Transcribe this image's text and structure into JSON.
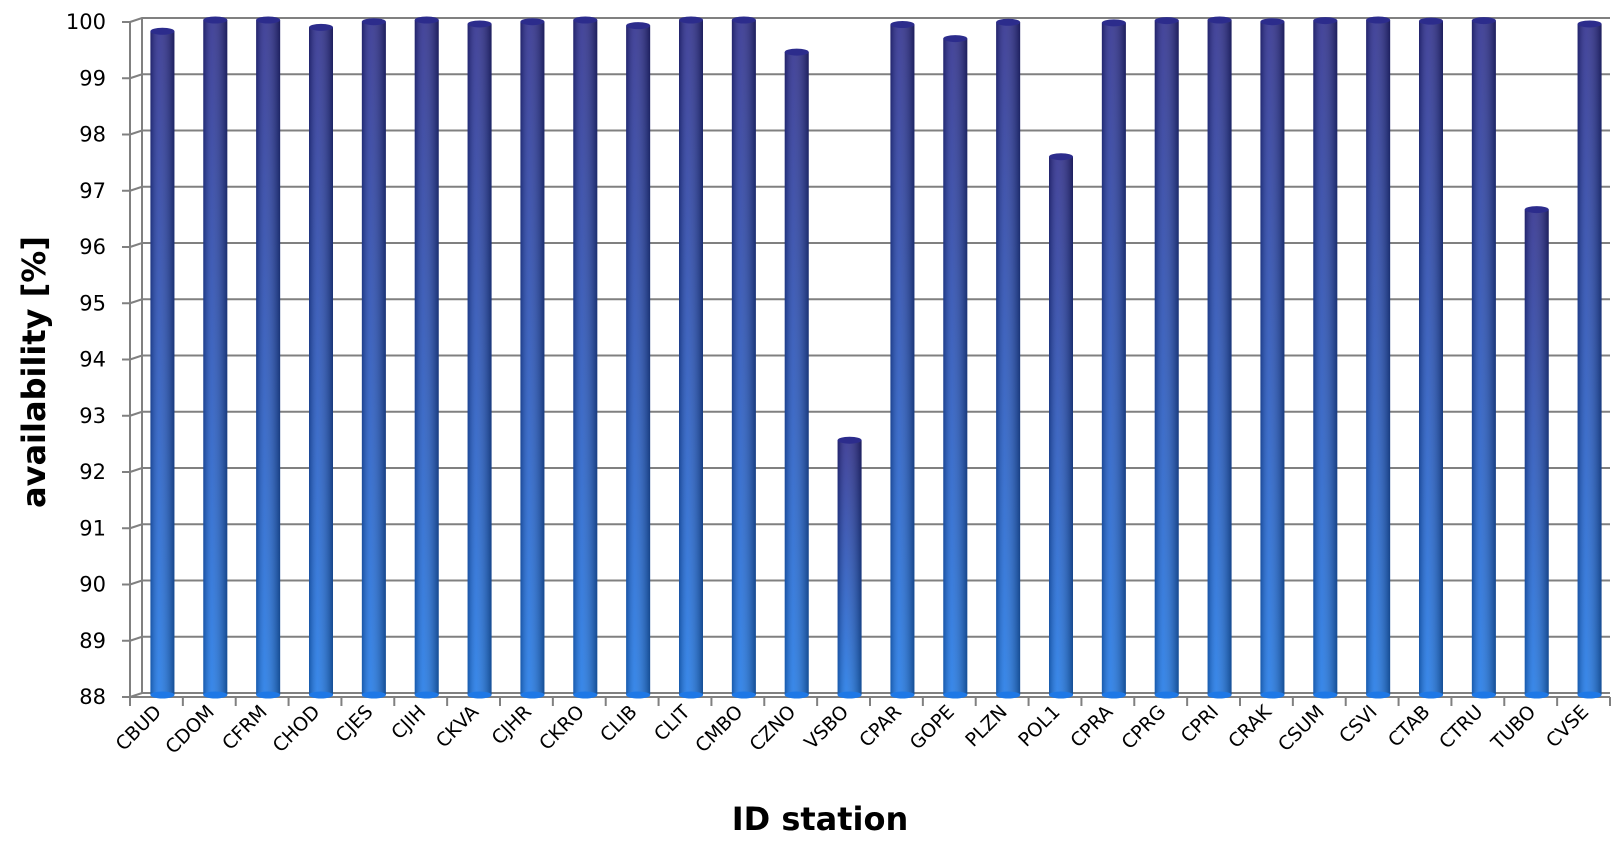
{
  "chart_data": {
    "type": "bar",
    "title": "",
    "xlabel": "ID station",
    "ylabel": "availability [%]",
    "ylim": [
      88,
      100
    ],
    "yticks": [
      88,
      89,
      90,
      91,
      92,
      93,
      94,
      95,
      96,
      97,
      98,
      99,
      100
    ],
    "grid": true,
    "legend": "none",
    "colors": {
      "bar_top": "#2c2c8c",
      "bar_bottom": "#1e78e6",
      "grid": "#808080"
    },
    "categories": [
      "CBUD",
      "CDOM",
      "CFRM",
      "CHOD",
      "CJES",
      "CJIH",
      "CKVA",
      "CJHR",
      "CKRO",
      "CLIB",
      "CLIT",
      "CMBO",
      "CZNO",
      "VSBO",
      "CPAR",
      "GOPE",
      "PLZN",
      "POL1",
      "CPRA",
      "CPRG",
      "CPRI",
      "CRAK",
      "CSUM",
      "CSVI",
      "CTAB",
      "CTRU",
      "TUBO",
      "CVSE"
    ],
    "values": [
      99.8,
      100.0,
      100.0,
      99.87,
      99.97,
      100.0,
      99.93,
      99.97,
      100.0,
      99.9,
      100.0,
      100.0,
      99.43,
      92.53,
      99.92,
      99.67,
      99.96,
      97.57,
      99.95,
      99.99,
      100.0,
      99.97,
      99.99,
      100.0,
      99.98,
      99.99,
      96.63,
      99.93
    ]
  }
}
